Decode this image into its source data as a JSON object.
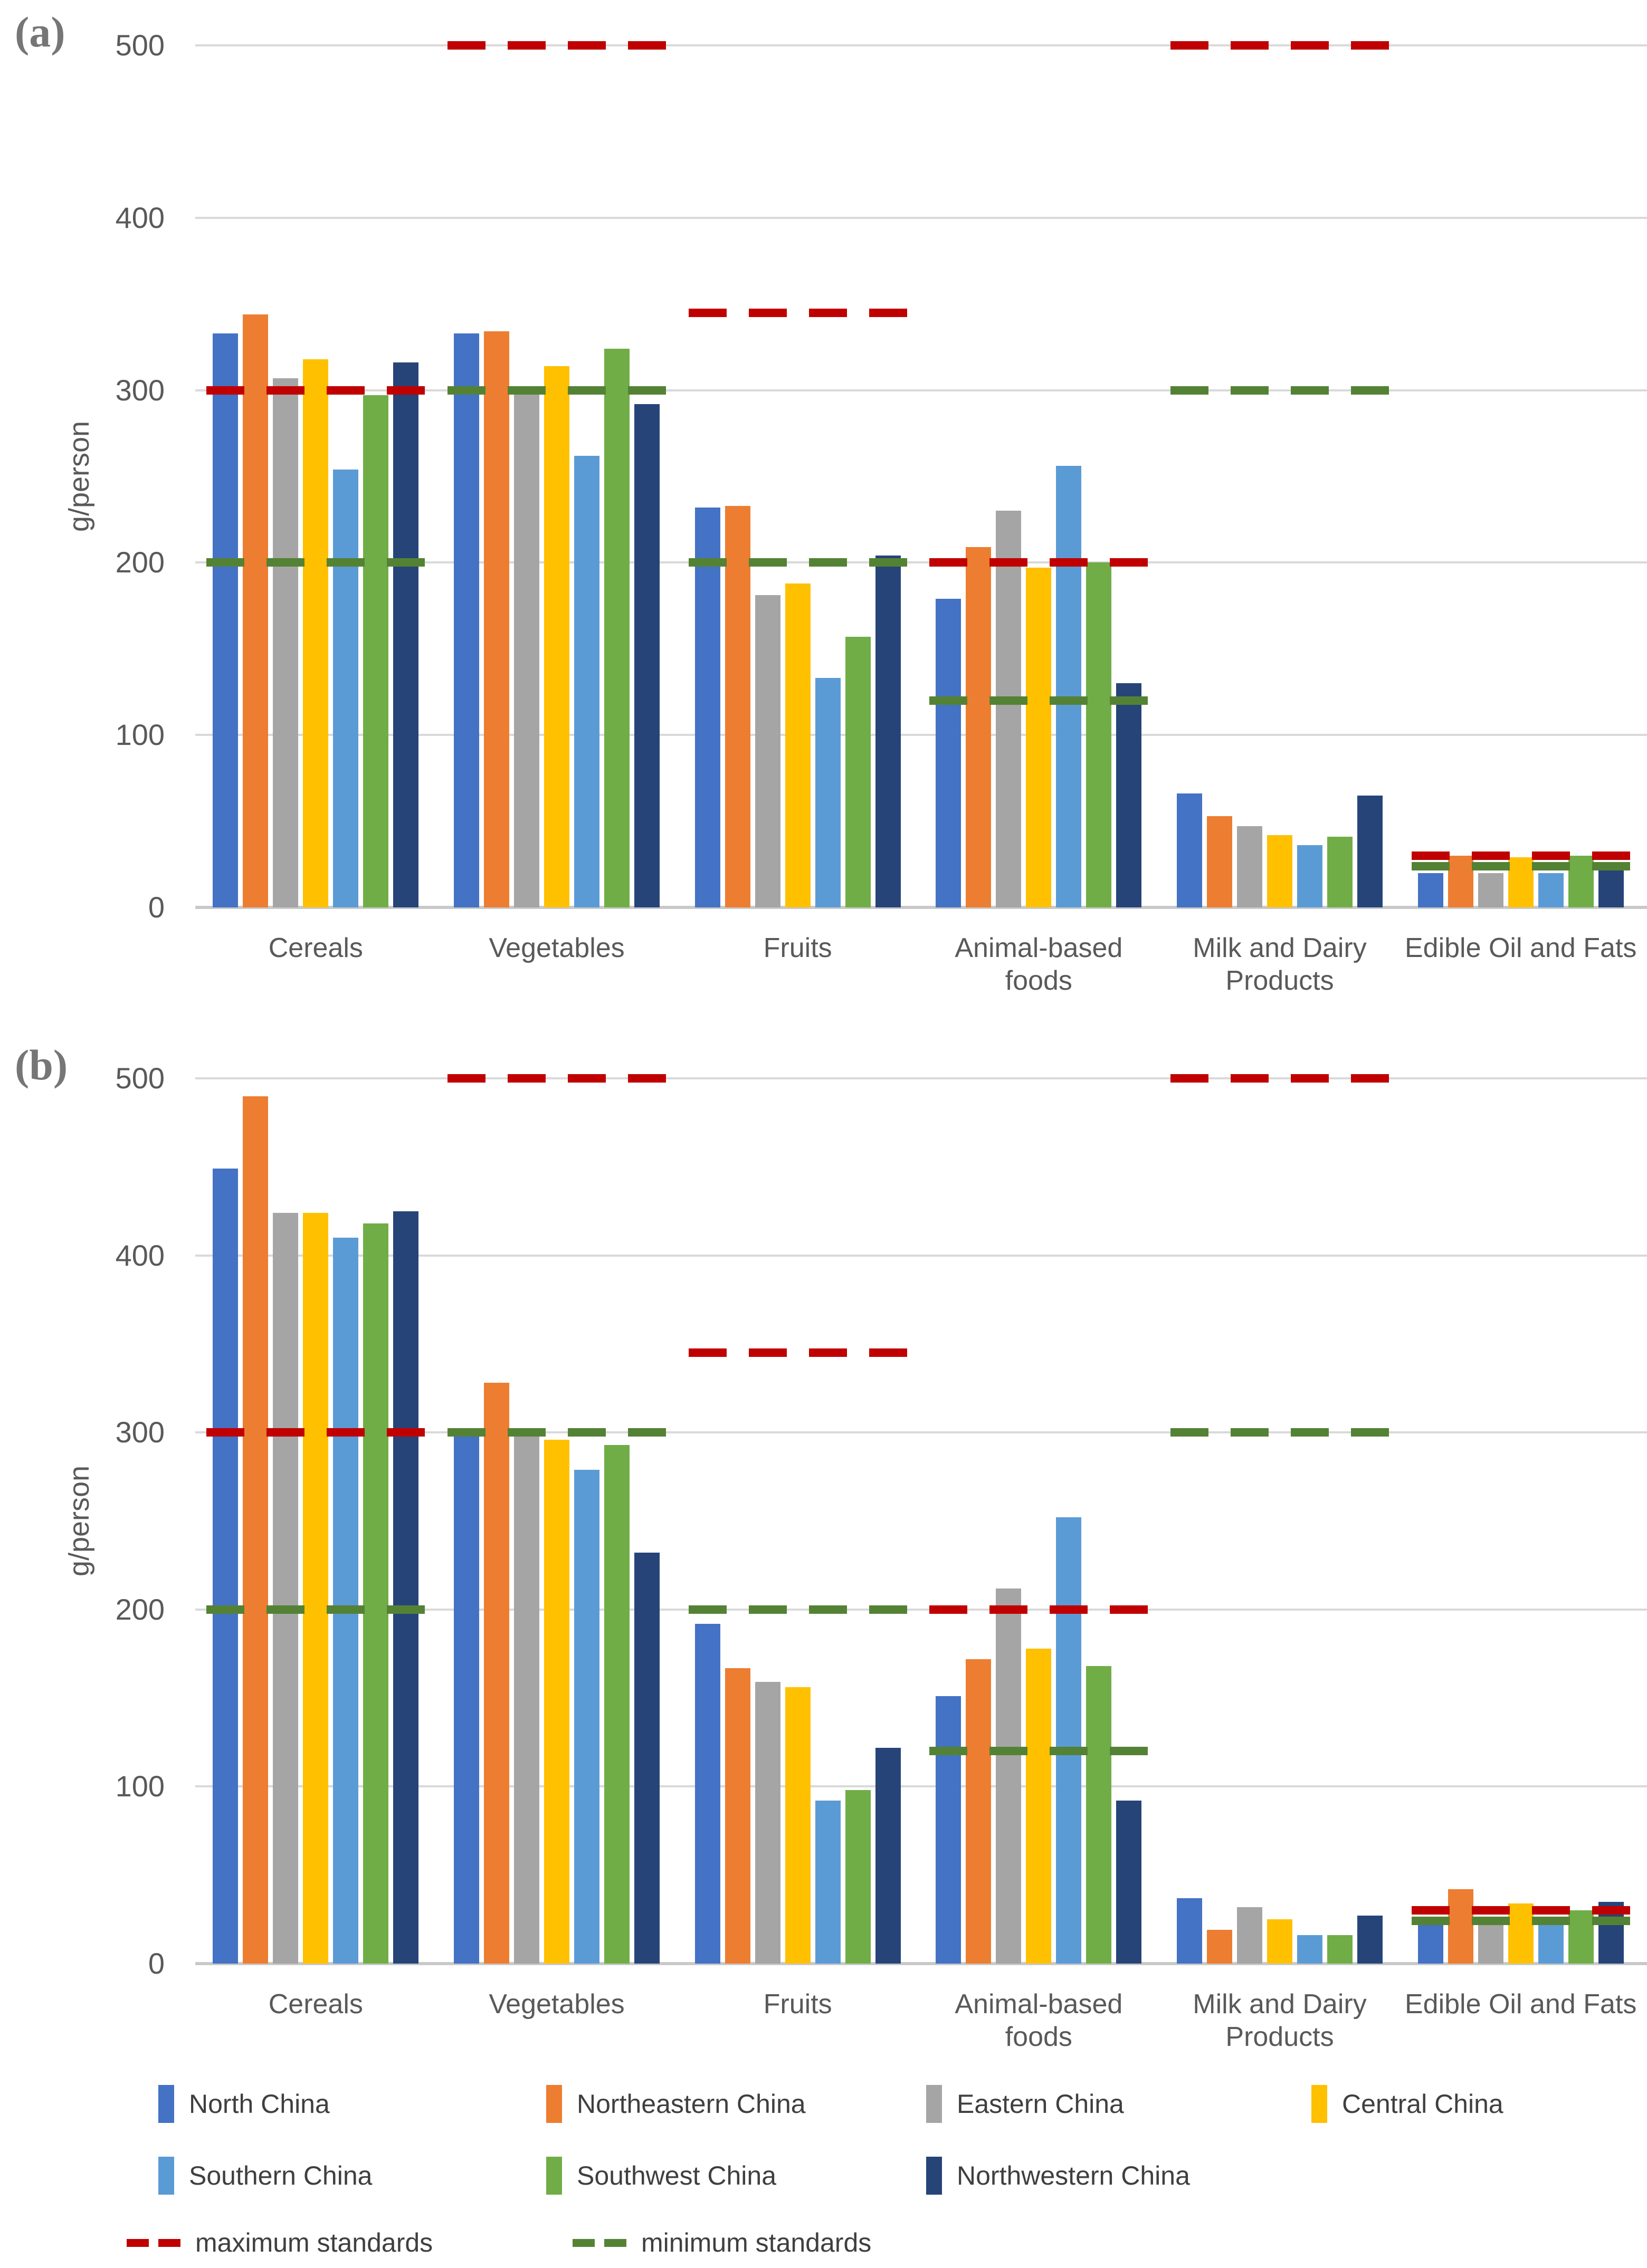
{
  "page": {
    "background": "#ffffff"
  },
  "legend": {
    "regions": [
      {
        "label": "North China",
        "color": "#4472C4"
      },
      {
        "label": "Northeastern China",
        "color": "#ED7D31"
      },
      {
        "label": "Eastern China",
        "color": "#A5A5A5"
      },
      {
        "label": "Central China",
        "color": "#FFC000"
      },
      {
        "label": "Southern China",
        "color": "#5B9BD5"
      },
      {
        "label": "Southwest China",
        "color": "#70AD47"
      },
      {
        "label": "Northwestern China",
        "color": "#264478"
      }
    ],
    "standards": [
      {
        "label": "maximum standards",
        "color": "#C00000"
      },
      {
        "label": "minimum standards",
        "color": "#548235"
      }
    ]
  },
  "chart_data": [
    {
      "type": "bar",
      "panel_label": "(a)",
      "ylabel": "g/person",
      "ylim": [
        0,
        500
      ],
      "yticks": [
        0,
        100,
        200,
        300,
        400,
        500
      ],
      "grid": true,
      "legend_position": "bottom",
      "categories": [
        "Cereals",
        "Vegetables",
        "Fruits",
        "Animal-based\nfoods",
        "Milk and Dairy\nProducts",
        "Edible Oil and Fats"
      ],
      "series": [
        {
          "name": "North China",
          "color": "#4472C4",
          "values": [
            333,
            333,
            232,
            179,
            66,
            20
          ]
        },
        {
          "name": "Northeastern China",
          "color": "#ED7D31",
          "values": [
            344,
            334,
            233,
            209,
            53,
            30
          ]
        },
        {
          "name": "Eastern China",
          "color": "#A5A5A5",
          "values": [
            307,
            300,
            181,
            230,
            47,
            20
          ]
        },
        {
          "name": "Central China",
          "color": "#FFC000",
          "values": [
            318,
            314,
            188,
            197,
            42,
            29
          ]
        },
        {
          "name": "Southern China",
          "color": "#5B9BD5",
          "values": [
            254,
            262,
            133,
            256,
            36,
            20
          ]
        },
        {
          "name": "Southwest China",
          "color": "#70AD47",
          "values": [
            297,
            324,
            157,
            200,
            41,
            30
          ]
        },
        {
          "name": "Northwestern China",
          "color": "#264478",
          "values": [
            316,
            292,
            204,
            130,
            65,
            26
          ]
        }
      ],
      "max_standards": {
        "label": "maximum standards",
        "color": "#C00000",
        "values": [
          300,
          500,
          345,
          200,
          500,
          30
        ]
      },
      "min_standards": {
        "label": "minimum standards",
        "color": "#548235",
        "values": [
          200,
          300,
          200,
          120,
          300,
          24
        ]
      }
    },
    {
      "type": "bar",
      "panel_label": "(b)",
      "ylabel": "g/person",
      "ylim": [
        0,
        500
      ],
      "yticks": [
        0,
        100,
        200,
        300,
        400,
        500
      ],
      "grid": true,
      "legend_position": "bottom",
      "categories": [
        "Cereals",
        "Vegetables",
        "Fruits",
        "Animal-based\nfoods",
        "Milk and Dairy\nProducts",
        "Edible Oil and Fats"
      ],
      "series": [
        {
          "name": "North China",
          "color": "#4472C4",
          "values": [
            449,
            300,
            192,
            151,
            37,
            22
          ]
        },
        {
          "name": "Northeastern China",
          "color": "#ED7D31",
          "values": [
            490,
            328,
            167,
            172,
            19,
            42
          ]
        },
        {
          "name": "Eastern China",
          "color": "#A5A5A5",
          "values": [
            424,
            302,
            159,
            212,
            32,
            25
          ]
        },
        {
          "name": "Central China",
          "color": "#FFC000",
          "values": [
            424,
            296,
            156,
            178,
            25,
            34
          ]
        },
        {
          "name": "Southern China",
          "color": "#5B9BD5",
          "values": [
            410,
            279,
            92,
            252,
            16,
            22
          ]
        },
        {
          "name": "Southwest China",
          "color": "#70AD47",
          "values": [
            418,
            293,
            98,
            168,
            16,
            30
          ]
        },
        {
          "name": "Northwestern China",
          "color": "#264478",
          "values": [
            425,
            232,
            122,
            92,
            27,
            35
          ]
        }
      ],
      "max_standards": {
        "label": "maximum standards",
        "color": "#C00000",
        "values": [
          300,
          500,
          345,
          200,
          500,
          30
        ]
      },
      "min_standards": {
        "label": "minimum standards",
        "color": "#548235",
        "values": [
          200,
          300,
          200,
          120,
          300,
          24
        ]
      }
    }
  ]
}
